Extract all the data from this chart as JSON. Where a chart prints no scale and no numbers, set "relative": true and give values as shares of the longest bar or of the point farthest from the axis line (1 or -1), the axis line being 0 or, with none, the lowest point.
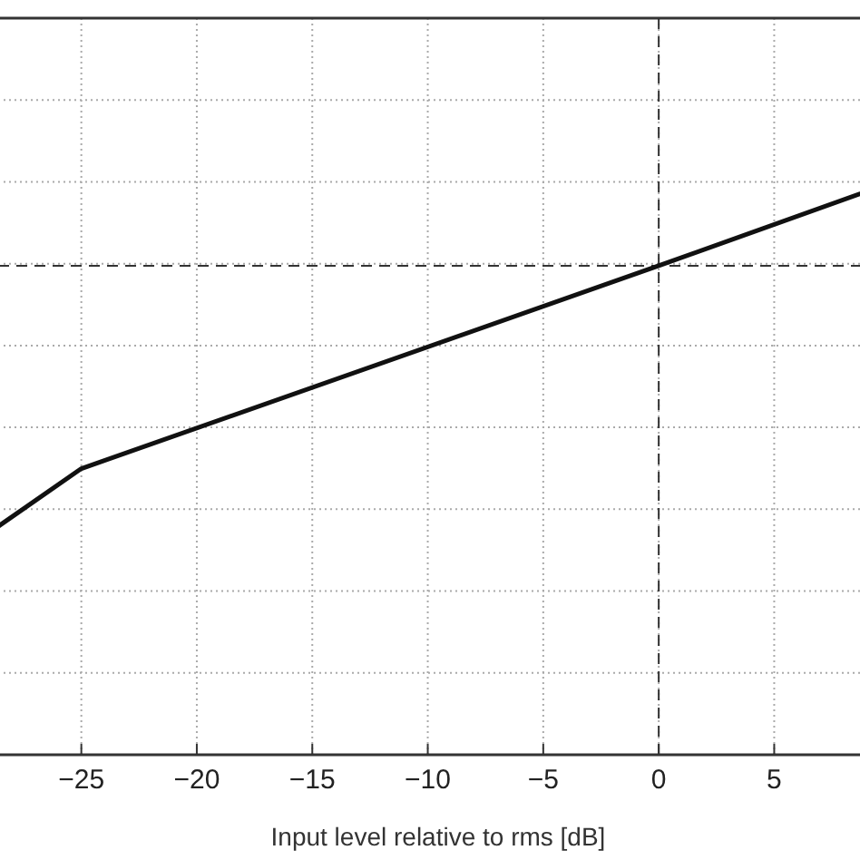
{
  "chart_data": {
    "type": "line",
    "xlabel": "Input level relative to rms [dB]",
    "relative": true,
    "xlim": [
      -28.6,
      9.5
    ],
    "xticks": [
      -25,
      -20,
      -15,
      -10,
      -5,
      0,
      5
    ],
    "grid": true,
    "marker": "none",
    "line_style": "solid",
    "series": [
      {
        "color": "#111111",
        "x": [
          -28.6,
          -25,
          0,
          9.4
        ],
        "values": [
          0.403,
          0.505,
          0.863,
          1.0
        ]
      }
    ],
    "ref_lines": [
      {
        "axis": "x",
        "value": 0,
        "color": "#333333",
        "line_style": "dashed"
      },
      {
        "axis": "y",
        "value": 0.863,
        "color": "#333333",
        "line_style": "dashed"
      }
    ]
  }
}
